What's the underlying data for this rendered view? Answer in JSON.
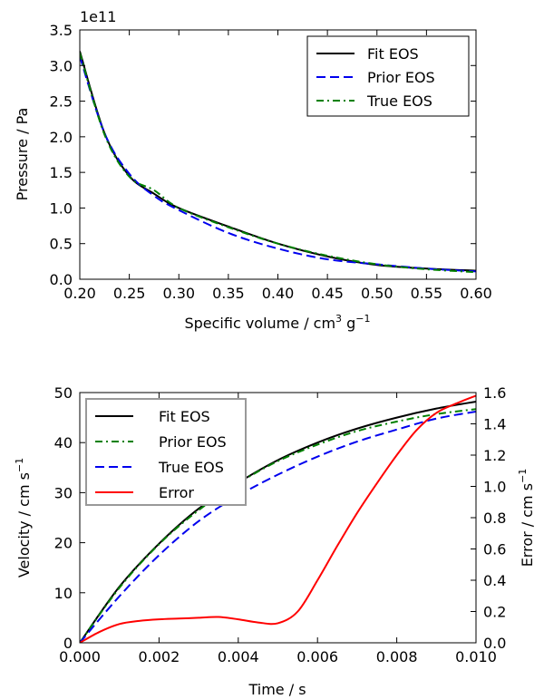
{
  "chart_data": [
    {
      "type": "line",
      "offset_label": "1e11",
      "xlabel": "Specific volume / cm",
      "xlabel_unit_sup1": "3",
      "xlabel_unit_mid": " g",
      "xlabel_unit_sup2": "−1",
      "ylabel": "Pressure / Pa",
      "xlim": [
        0.2,
        0.6
      ],
      "ylim": [
        0.0,
        3.5
      ],
      "xticks": [
        "0.20",
        "0.25",
        "0.30",
        "0.35",
        "0.40",
        "0.45",
        "0.50",
        "0.55",
        "0.60"
      ],
      "yticks": [
        "0.0",
        "0.5",
        "1.0",
        "1.5",
        "2.0",
        "2.5",
        "3.0",
        "3.5"
      ],
      "legend_position": "top-right",
      "series": [
        {
          "name": "Fit EOS",
          "color": "#000000",
          "style": "solid",
          "x": [
            0.2,
            0.225,
            0.25,
            0.275,
            0.3,
            0.35,
            0.4,
            0.45,
            0.5,
            0.55,
            0.6
          ],
          "y": [
            3.2,
            2.05,
            1.45,
            1.2,
            1.0,
            0.74,
            0.5,
            0.32,
            0.2,
            0.15,
            0.12
          ]
        },
        {
          "name": "Prior EOS",
          "color": "#0000ee",
          "style": "dashed",
          "x": [
            0.2,
            0.225,
            0.25,
            0.275,
            0.3,
            0.35,
            0.4,
            0.45,
            0.5,
            0.55,
            0.6
          ],
          "y": [
            3.13,
            2.05,
            1.48,
            1.17,
            0.97,
            0.65,
            0.43,
            0.28,
            0.21,
            0.15,
            0.11
          ]
        },
        {
          "name": "True EOS",
          "color": "#008000",
          "style": "dashdot",
          "x": [
            0.2,
            0.225,
            0.25,
            0.275,
            0.3,
            0.35,
            0.4,
            0.45,
            0.5,
            0.55,
            0.6
          ],
          "y": [
            3.18,
            2.03,
            1.44,
            1.25,
            1.0,
            0.73,
            0.5,
            0.33,
            0.21,
            0.14,
            0.1
          ]
        }
      ]
    },
    {
      "type": "line",
      "xlabel": "Time / s",
      "ylabel": "Velocity / cm s",
      "ylabel_sup": "−1",
      "ylabel_right": "Error / cm s",
      "ylabel_right_sup": "−1",
      "xlim": [
        0.0,
        0.01
      ],
      "ylim": [
        0,
        50
      ],
      "ylim_right": [
        0.0,
        1.6
      ],
      "xticks": [
        "0.000",
        "0.002",
        "0.004",
        "0.006",
        "0.008",
        "0.010"
      ],
      "yticks": [
        "0",
        "10",
        "20",
        "30",
        "40",
        "50"
      ],
      "yticks_right": [
        "0.0",
        "0.2",
        "0.4",
        "0.6",
        "0.8",
        "1.0",
        "1.2",
        "1.4",
        "1.6"
      ],
      "legend_position": "top-left",
      "series": [
        {
          "name": "Fit EOS",
          "color": "#000000",
          "style": "solid",
          "axis": "left",
          "x": [
            0.0,
            0.001,
            0.002,
            0.003,
            0.004,
            0.005,
            0.006,
            0.007,
            0.008,
            0.009,
            0.01
          ],
          "y": [
            0,
            11.2,
            19.8,
            26.8,
            32.0,
            36.5,
            40.0,
            42.8,
            45.0,
            46.8,
            48.2
          ]
        },
        {
          "name": "Prior EOS",
          "color": "#008000",
          "style": "dashdot",
          "axis": "left",
          "x": [
            0.0,
            0.001,
            0.002,
            0.003,
            0.004,
            0.005,
            0.006,
            0.007,
            0.008,
            0.009,
            0.01
          ],
          "y": [
            0,
            11.0,
            19.7,
            26.5,
            31.9,
            36.3,
            39.6,
            42.3,
            44.2,
            45.7,
            46.7
          ]
        },
        {
          "name": "True EOS",
          "color": "#0000ee",
          "style": "dashed",
          "axis": "left",
          "x": [
            0.0,
            0.001,
            0.002,
            0.003,
            0.004,
            0.005,
            0.006,
            0.007,
            0.008,
            0.009,
            0.01
          ],
          "y": [
            0,
            9.3,
            17.5,
            24.3,
            29.4,
            33.6,
            37.2,
            40.2,
            42.6,
            44.8,
            46.2
          ]
        },
        {
          "name": "Error",
          "color": "#ff0000",
          "style": "solid",
          "axis": "right",
          "x": [
            0.0,
            0.0005,
            0.001,
            0.0015,
            0.002,
            0.0025,
            0.003,
            0.0035,
            0.004,
            0.0045,
            0.005,
            0.0055,
            0.006,
            0.0065,
            0.007,
            0.0075,
            0.008,
            0.0085,
            0.009,
            0.0095,
            0.01
          ],
          "y": [
            0.0,
            0.07,
            0.12,
            0.14,
            0.15,
            0.155,
            0.16,
            0.165,
            0.15,
            0.13,
            0.125,
            0.2,
            0.4,
            0.62,
            0.83,
            1.02,
            1.2,
            1.36,
            1.47,
            1.53,
            1.58
          ]
        }
      ]
    }
  ]
}
